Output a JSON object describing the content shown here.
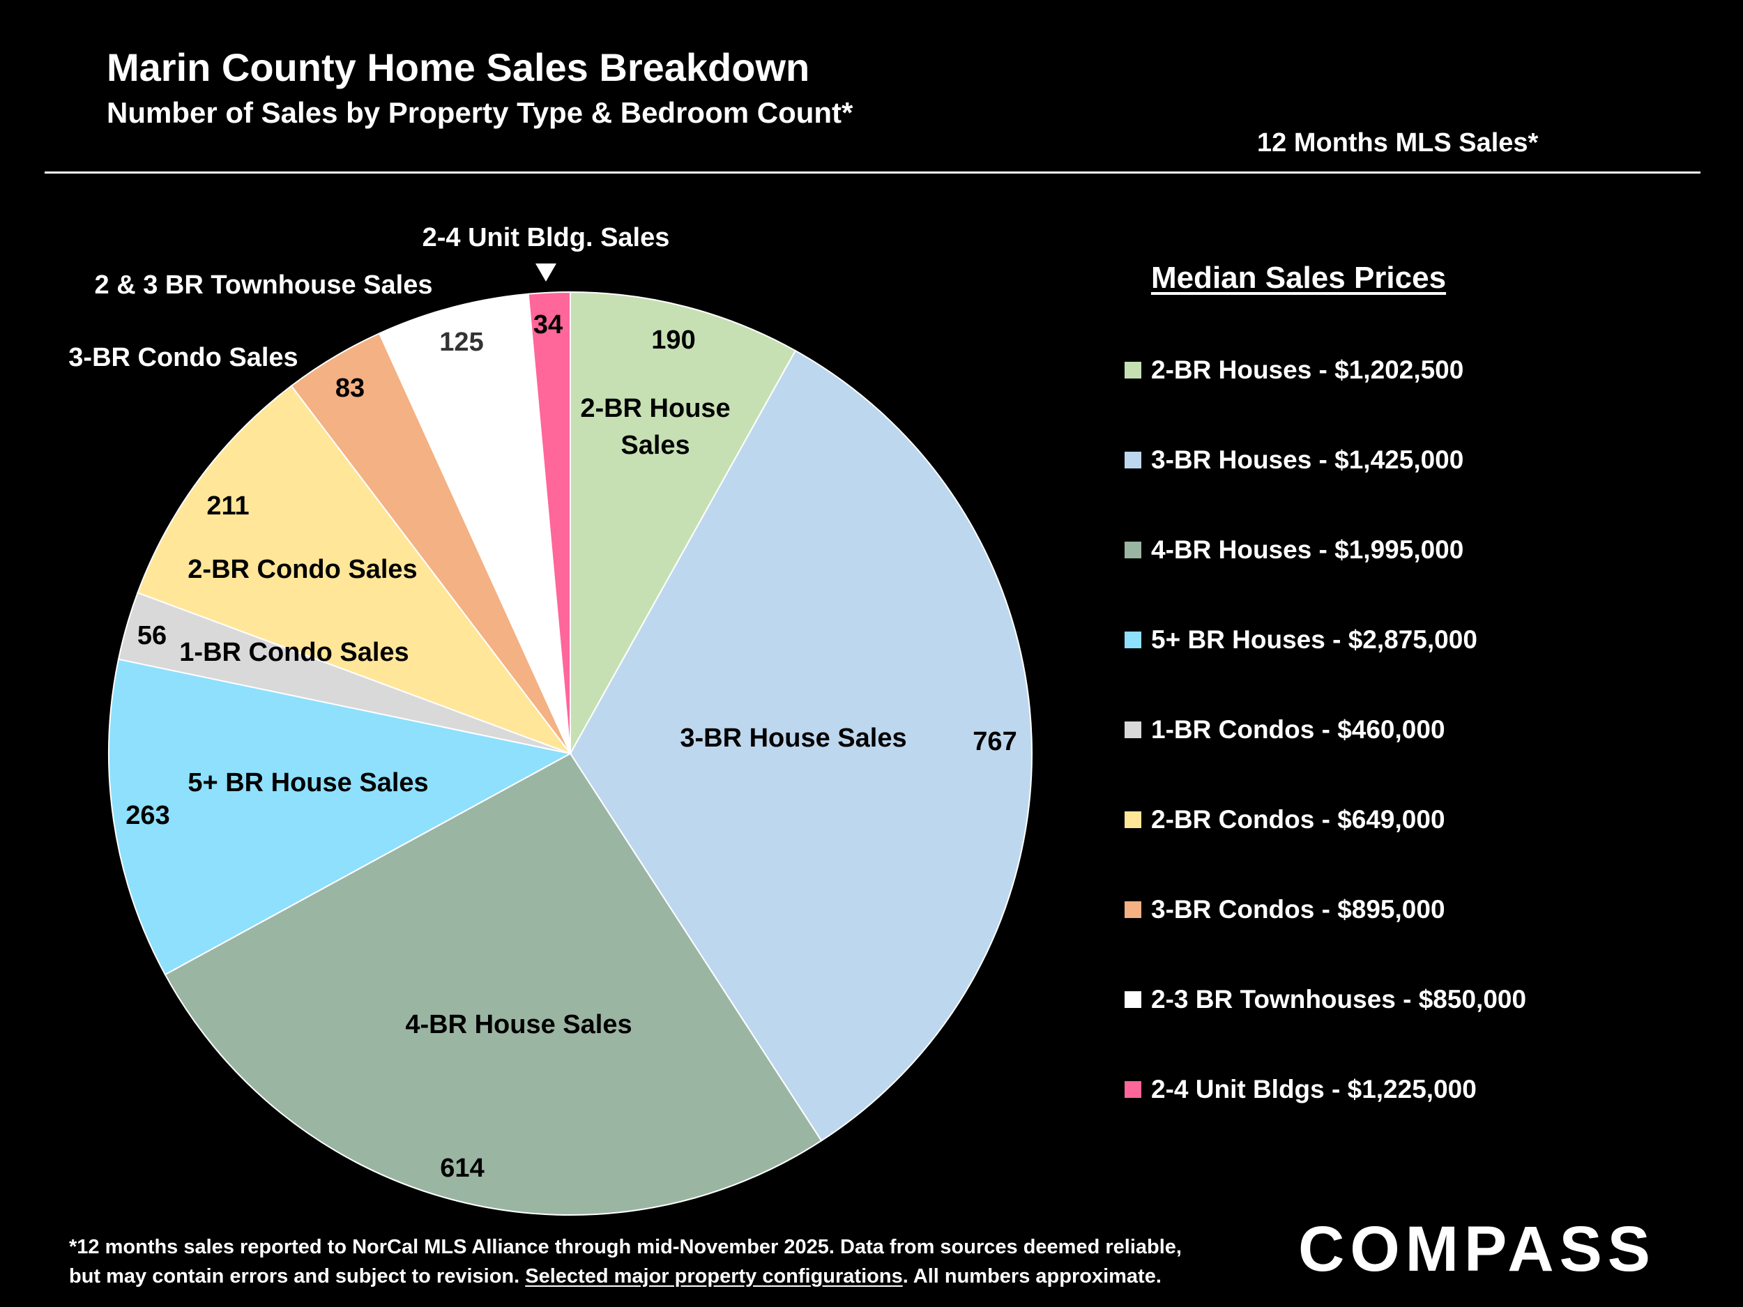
{
  "header": {
    "title": "Marin County Home Sales Breakdown",
    "subtitle": "Number of Sales by Property Type & Bedroom Count*",
    "period": "12 Months MLS Sales*"
  },
  "chart_data": {
    "type": "pie",
    "start": "12 o'clock, clockwise",
    "slices": [
      {
        "label": "2-BR House Sales",
        "value": 190,
        "color": "#c6e0b4"
      },
      {
        "label": "3-BR House Sales",
        "value": 767,
        "color": "#bdd7ee"
      },
      {
        "label": "4-BR House Sales",
        "value": 614,
        "color": "#9bb5a3"
      },
      {
        "label": "5+ BR House Sales",
        "value": 263,
        "color": "#8ee0fd"
      },
      {
        "label": "1-BR Condo Sales",
        "value": 56,
        "color": "#d9d9d9"
      },
      {
        "label": "2-BR Condo Sales",
        "value": 211,
        "color": "#ffe699"
      },
      {
        "label": "3-BR Condo Sales",
        "value": 83,
        "color": "#f4b183"
      },
      {
        "label": "2 & 3 BR Townhouse Sales",
        "value": 125,
        "color": "#ffffff"
      },
      {
        "label": "2-4 Unit Bldg. Sales",
        "value": 34,
        "color": "#ff6699"
      }
    ]
  },
  "legend": {
    "title": "Median Sales Prices",
    "items": [
      {
        "label": "2-BR Houses - $1,202,500",
        "color": "#c6e0b4"
      },
      {
        "label": "3-BR Houses - $1,425,000",
        "color": "#bdd7ee"
      },
      {
        "label": "4-BR Houses - $1,995,000",
        "color": "#9bb5a3"
      },
      {
        "label": "5+ BR Houses - $2,875,000",
        "color": "#8ee0fd"
      },
      {
        "label": "1-BR Condos - $460,000",
        "color": "#d9d9d9"
      },
      {
        "label": "2-BR Condos - $649,000",
        "color": "#ffe699"
      },
      {
        "label": "3-BR Condos - $895,000",
        "color": "#f4b183"
      },
      {
        "label": "2-3 BR Townhouses - $850,000",
        "color": "#ffffff"
      },
      {
        "label": "2-4 Unit Bldgs - $1,225,000",
        "color": "#ff6699"
      }
    ]
  },
  "footnote": {
    "line1": "*12 months sales reported to NorCal MLS Alliance through mid-November 2025. Data from sources deemed reliable,",
    "line2_a": "but may contain errors and subject to revision. ",
    "line2_link": "Selected major property configurations",
    "line2_b": ". All numbers approximate."
  },
  "logo": {
    "text": "COMPASS"
  }
}
